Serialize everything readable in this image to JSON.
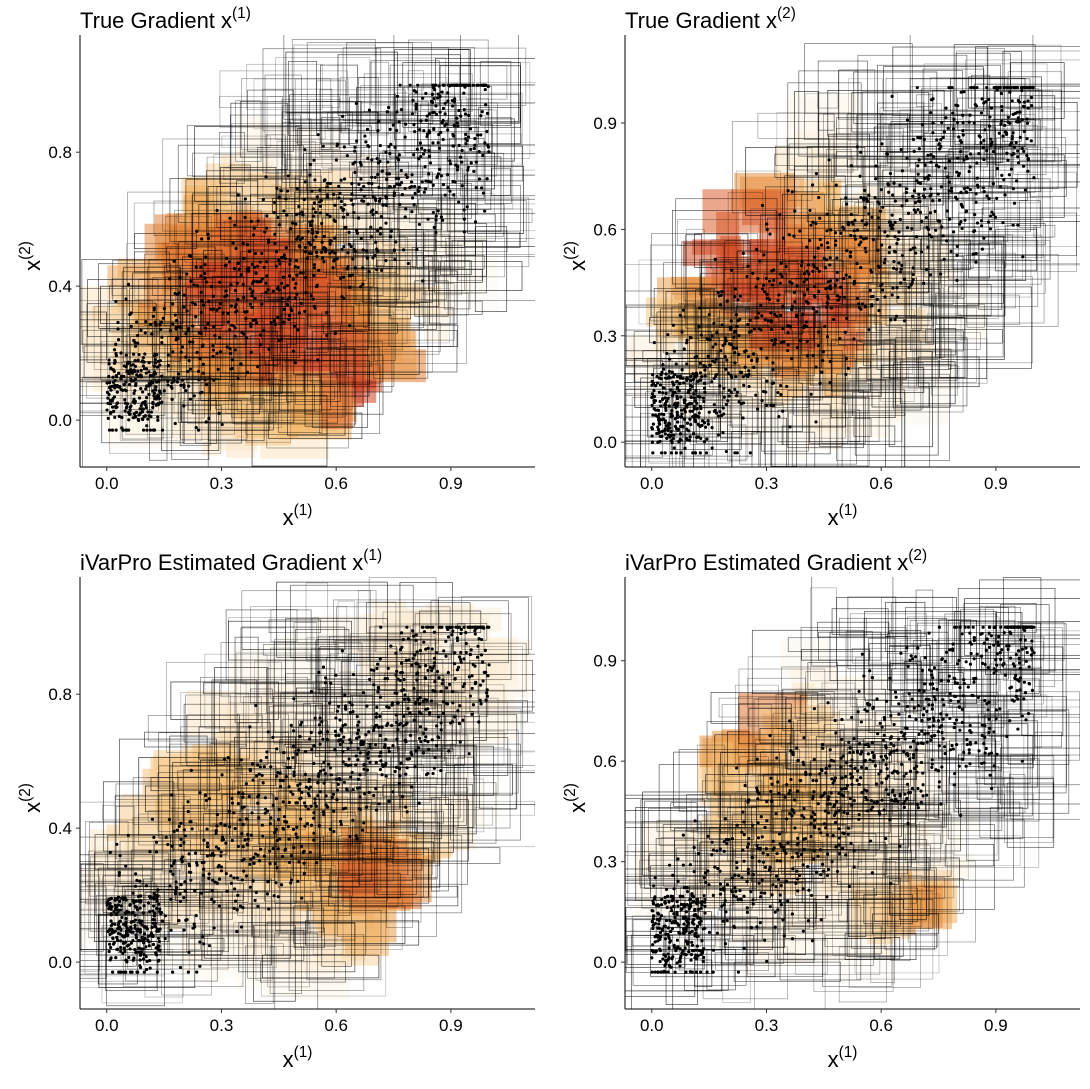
{
  "figure": {
    "background": "#ffffff",
    "box_color": "#000000",
    "point_color": "#000000",
    "fill_scale": [
      "#ffffff",
      "#fbe6c6",
      "#f3b96a",
      "#e48a3b",
      "#d9582b",
      "#cc3a22"
    ]
  },
  "chart_data": [
    {
      "id": "true-x1",
      "type": "scatter",
      "title": "True Gradient x",
      "title_superscript": "(1)",
      "xlabel": "x",
      "xlabel_superscript": "(1)",
      "ylabel": "x",
      "ylabel_superscript": "(2)",
      "xlim": [
        -0.07,
        1.12
      ],
      "ylim": [
        -0.14,
        1.12
      ],
      "xticks": [
        0.0,
        0.3,
        0.6,
        0.9
      ],
      "xtick_labels": [
        "0.0",
        "0.3",
        "0.6",
        "0.9"
      ],
      "yticks": [
        0.0,
        0.4,
        0.8
      ],
      "ytick_labels": [
        "0.0",
        "0.4",
        "0.8"
      ],
      "grid": false,
      "hotspots": [
        {
          "x": 0.47,
          "y": 0.3,
          "s": 0.2,
          "w": 1.0
        },
        {
          "x": 0.68,
          "y": 0.1,
          "s": 0.07,
          "w": 0.9
        },
        {
          "x": 0.25,
          "y": 0.45,
          "s": 0.18,
          "w": 0.55
        }
      ],
      "seed": 11
    },
    {
      "id": "true-x2",
      "type": "scatter",
      "title": "True Gradient x",
      "title_superscript": "(2)",
      "xlabel": "x",
      "xlabel_superscript": "(1)",
      "ylabel": "x",
      "ylabel_superscript": "(2)",
      "xlim": [
        -0.07,
        1.12
      ],
      "ylim": [
        -0.07,
        1.12
      ],
      "xticks": [
        0.0,
        0.3,
        0.6,
        0.9
      ],
      "xtick_labels": [
        "0.0",
        "0.3",
        "0.6",
        "0.9"
      ],
      "yticks": [
        0.0,
        0.3,
        0.6,
        0.9
      ],
      "ytick_labels": [
        "0.0",
        "0.3",
        "0.6",
        "0.9"
      ],
      "grid": false,
      "hotspots": [
        {
          "x": 0.25,
          "y": 0.52,
          "s": 0.18,
          "w": 1.0
        },
        {
          "x": 0.15,
          "y": 0.65,
          "s": 0.08,
          "w": 0.9
        },
        {
          "x": 0.45,
          "y": 0.38,
          "s": 0.15,
          "w": 0.7
        }
      ],
      "seed": 23
    },
    {
      "id": "ivarpro-x1",
      "type": "scatter",
      "title": "iVarPro Estimated Gradient x",
      "title_superscript": "(1)",
      "xlabel": "x",
      "xlabel_superscript": "(1)",
      "ylabel": "x",
      "ylabel_superscript": "(2)",
      "xlim": [
        -0.07,
        1.12
      ],
      "ylim": [
        -0.14,
        1.12
      ],
      "xticks": [
        0.0,
        0.3,
        0.6,
        0.9
      ],
      "xtick_labels": [
        "0.0",
        "0.3",
        "0.6",
        "0.9"
      ],
      "yticks": [
        0.0,
        0.4,
        0.8
      ],
      "ytick_labels": [
        "0.0",
        "0.4",
        "0.8"
      ],
      "grid": false,
      "hotspots": [
        {
          "x": 0.7,
          "y": 0.25,
          "s": 0.14,
          "w": 0.75
        },
        {
          "x": 0.3,
          "y": 0.45,
          "s": 0.22,
          "w": 0.45
        },
        {
          "x": 0.85,
          "y": 0.9,
          "s": 0.15,
          "w": 0.25
        }
      ],
      "seed": 37
    },
    {
      "id": "ivarpro-x2",
      "type": "scatter",
      "title": "iVarPro Estimated Gradient x",
      "title_superscript": "(2)",
      "xlabel": "x",
      "xlabel_superscript": "(1)",
      "ylabel": "x",
      "ylabel_superscript": "(2)",
      "xlim": [
        -0.07,
        1.12
      ],
      "ylim": [
        -0.14,
        1.12
      ],
      "xticks": [
        0.0,
        0.3,
        0.6,
        0.9
      ],
      "xtick_labels": [
        "0.0",
        "0.3",
        "0.6",
        "0.9"
      ],
      "yticks": [
        0.0,
        0.3,
        0.6,
        0.9
      ],
      "ytick_labels": [
        "0.0",
        "0.3",
        "0.6",
        "0.9"
      ],
      "grid": false,
      "hotspots": [
        {
          "x": 0.22,
          "y": 0.75,
          "s": 0.09,
          "w": 0.95
        },
        {
          "x": 0.7,
          "y": 0.12,
          "s": 0.07,
          "w": 0.85
        },
        {
          "x": 0.35,
          "y": 0.45,
          "s": 0.2,
          "w": 0.45
        }
      ],
      "seed": 51
    }
  ]
}
